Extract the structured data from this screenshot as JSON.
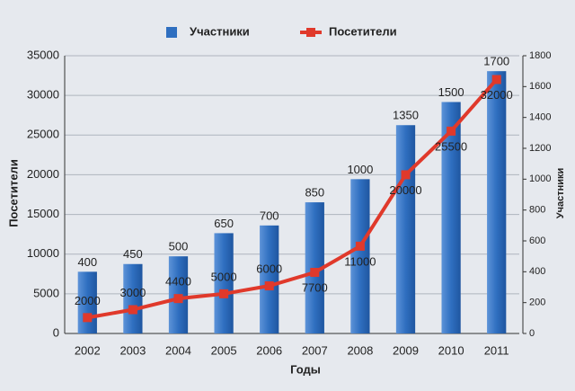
{
  "chart_data": {
    "type": "bar-line",
    "categories": [
      "2002",
      "2003",
      "2004",
      "2005",
      "2006",
      "2007",
      "2008",
      "2009",
      "2010",
      "2011"
    ],
    "series": [
      {
        "name": "Участники",
        "type": "bar",
        "axis": "y2",
        "color": "#2f6fc0",
        "values": [
          400,
          450,
          500,
          650,
          700,
          850,
          1000,
          1350,
          1500,
          1700
        ]
      },
      {
        "name": "Посетители",
        "type": "line",
        "axis": "y",
        "color": "#e0392b",
        "values": [
          2000,
          3000,
          4400,
          5000,
          6000,
          7700,
          11000,
          20000,
          25500,
          32000
        ]
      }
    ],
    "x_label": "Годы",
    "y_label": "Посетители",
    "y2_label": "Участники",
    "ylim": [
      0,
      35000
    ],
    "yticks": [
      0,
      5000,
      10000,
      15000,
      20000,
      25000,
      30000,
      35000
    ],
    "y2lim": [
      0,
      1800
    ],
    "y2ticks": [
      0,
      200,
      400,
      600,
      800,
      1000,
      1200,
      1400,
      1600,
      1800
    ],
    "grid": true,
    "legend": "top"
  }
}
